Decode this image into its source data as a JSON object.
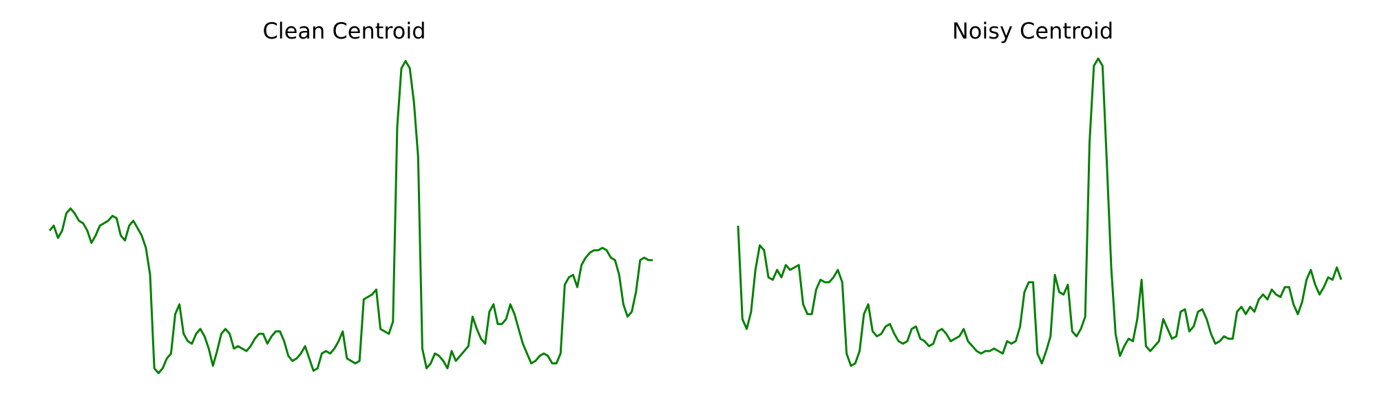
{
  "figure": {
    "line_color": "#008000",
    "background": "#ffffff"
  },
  "chart_data": [
    {
      "type": "line",
      "title": "Clean Centroid",
      "xlabel": "",
      "ylabel": "",
      "axes": "off",
      "grid": false,
      "ylim": [
        -0.35,
        1.05
      ],
      "series": [
        {
          "values": [
            0.28,
            0.3,
            0.25,
            0.28,
            0.35,
            0.37,
            0.35,
            0.32,
            0.31,
            0.28,
            0.23,
            0.26,
            0.3,
            0.31,
            0.32,
            0.34,
            0.33,
            0.26,
            0.24,
            0.3,
            0.32,
            0.29,
            0.26,
            0.21,
            0.1,
            -0.28,
            -0.3,
            -0.28,
            -0.24,
            -0.22,
            -0.06,
            -0.02,
            -0.14,
            -0.17,
            -0.18,
            -0.14,
            -0.12,
            -0.15,
            -0.2,
            -0.27,
            -0.21,
            -0.14,
            -0.12,
            -0.14,
            -0.2,
            -0.19,
            -0.2,
            -0.21,
            -0.19,
            -0.16,
            -0.14,
            -0.14,
            -0.18,
            -0.15,
            -0.13,
            -0.13,
            -0.17,
            -0.23,
            -0.25,
            -0.24,
            -0.22,
            -0.19,
            -0.24,
            -0.29,
            -0.28,
            -0.22,
            -0.21,
            -0.22,
            -0.2,
            -0.17,
            -0.13,
            -0.24,
            -0.25,
            -0.26,
            -0.25,
            0.0,
            0.01,
            0.02,
            0.04,
            -0.12,
            -0.13,
            -0.14,
            -0.09,
            0.7,
            0.94,
            0.97,
            0.94,
            0.8,
            0.58,
            -0.2,
            -0.28,
            -0.26,
            -0.22,
            -0.23,
            -0.25,
            -0.28,
            -0.21,
            -0.25,
            -0.23,
            -0.21,
            -0.19,
            -0.07,
            -0.12,
            -0.16,
            -0.18,
            -0.05,
            -0.02,
            -0.1,
            -0.1,
            -0.08,
            -0.02,
            -0.06,
            -0.12,
            -0.18,
            -0.22,
            -0.26,
            -0.25,
            -0.23,
            -0.22,
            -0.23,
            -0.26,
            -0.26,
            -0.22,
            0.06,
            0.09,
            0.1,
            0.05,
            0.14,
            0.17,
            0.19,
            0.2,
            0.2,
            0.21,
            0.2,
            0.17,
            0.16,
            0.1,
            -0.02,
            -0.07,
            -0.05,
            0.03,
            0.16,
            0.17,
            0.16,
            0.16
          ]
        }
      ]
    },
    {
      "type": "line",
      "title": "Noisy Centroid",
      "xlabel": "",
      "ylabel": "",
      "axes": "off",
      "grid": false,
      "ylim": [
        -0.35,
        1.05
      ],
      "series": [
        {
          "values": [
            0.3,
            -0.08,
            -0.12,
            -0.05,
            0.12,
            0.22,
            0.2,
            0.09,
            0.08,
            0.12,
            0.09,
            0.14,
            0.12,
            0.13,
            0.14,
            -0.02,
            -0.06,
            -0.06,
            0.04,
            0.08,
            0.07,
            0.07,
            0.09,
            0.12,
            0.07,
            -0.22,
            -0.27,
            -0.26,
            -0.21,
            -0.06,
            -0.02,
            -0.13,
            -0.15,
            -0.14,
            -0.11,
            -0.1,
            -0.14,
            -0.17,
            -0.18,
            -0.17,
            -0.12,
            -0.11,
            -0.16,
            -0.17,
            -0.19,
            -0.18,
            -0.13,
            -0.12,
            -0.14,
            -0.17,
            -0.16,
            -0.15,
            -0.12,
            -0.17,
            -0.19,
            -0.21,
            -0.22,
            -0.21,
            -0.21,
            -0.2,
            -0.21,
            -0.22,
            -0.17,
            -0.18,
            -0.17,
            -0.11,
            0.03,
            0.07,
            0.07,
            -0.22,
            -0.26,
            -0.21,
            -0.15,
            0.1,
            0.03,
            0.02,
            0.06,
            -0.13,
            -0.15,
            -0.12,
            -0.07,
            0.64,
            0.95,
            0.98,
            0.95,
            0.55,
            0.13,
            -0.14,
            -0.23,
            -0.19,
            -0.16,
            -0.17,
            -0.08,
            0.08,
            -0.19,
            -0.21,
            -0.19,
            -0.17,
            -0.08,
            -0.12,
            -0.16,
            -0.15,
            -0.05,
            -0.04,
            -0.13,
            -0.11,
            -0.05,
            -0.04,
            -0.08,
            -0.14,
            -0.18,
            -0.17,
            -0.15,
            -0.16,
            -0.16,
            -0.05,
            -0.03,
            -0.06,
            -0.03,
            -0.05,
            0.0,
            0.02,
            0.0,
            0.04,
            0.02,
            0.01,
            0.05,
            0.05,
            -0.02,
            -0.06,
            -0.01,
            0.08,
            0.12,
            0.06,
            0.02,
            0.05,
            0.09,
            0.08,
            0.13,
            0.08
          ]
        }
      ]
    }
  ]
}
